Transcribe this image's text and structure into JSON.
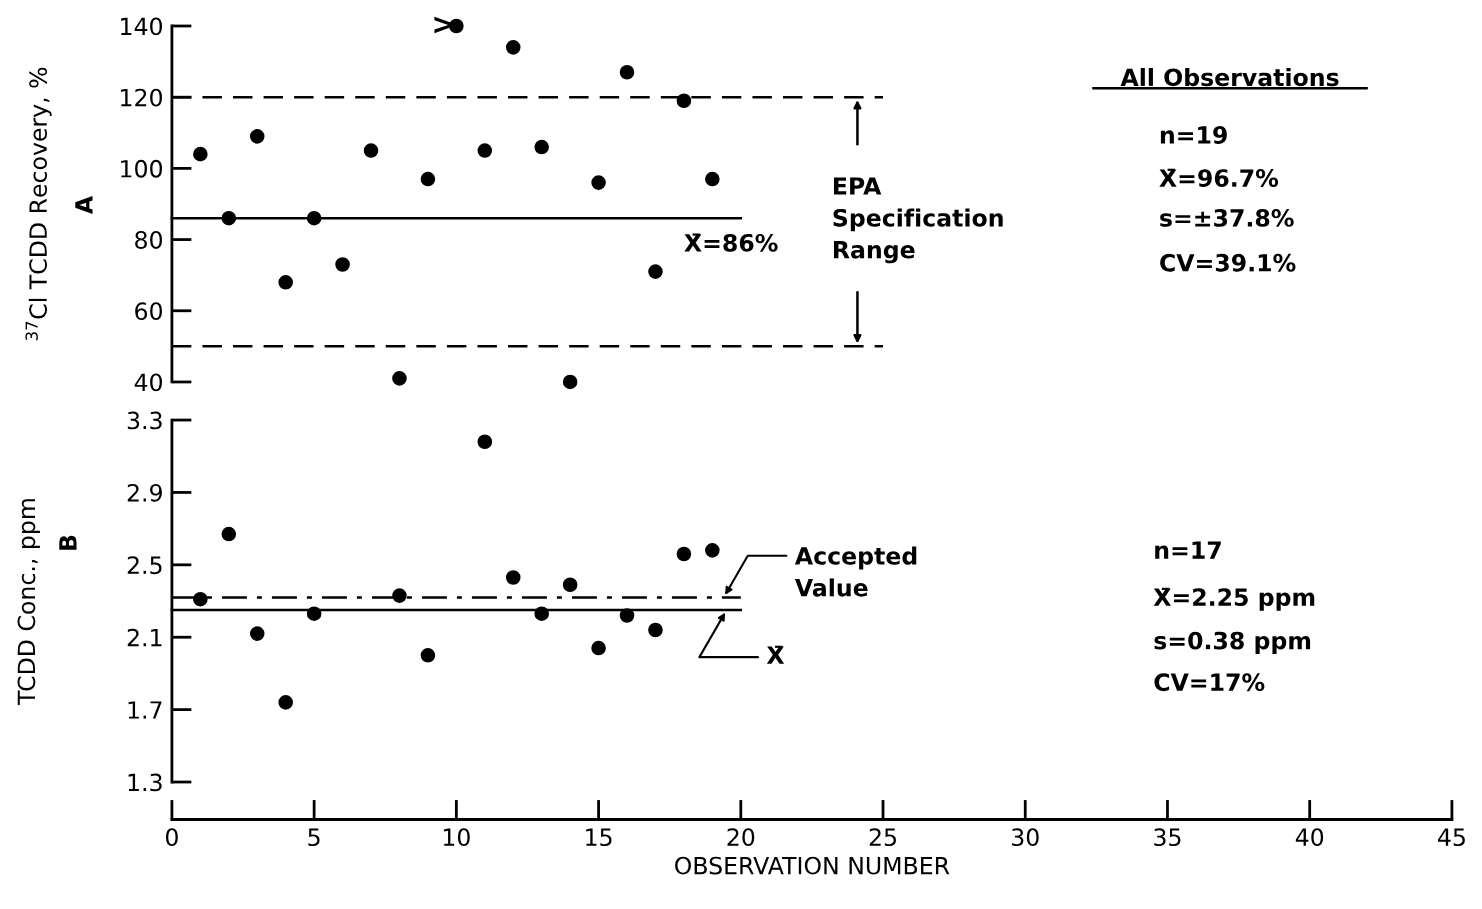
{
  "chart_data": [
    {
      "type": "scatter",
      "ylabel": "$^{37}$Cl TCDD Recovery, %",
      "xlim": [
        0,
        45
      ],
      "ylim": [
        40,
        140
      ],
      "yticks": [
        40,
        60,
        80,
        100,
        120,
        140
      ],
      "tick_labels": "y",
      "grid": false,
      "legend": false,
      "series": [
        {
          "color": "#000000",
          "marker": "circle",
          "x": [
            1,
            2,
            3,
            4,
            5,
            6,
            7,
            8,
            9,
            10,
            11,
            12,
            13,
            14,
            15,
            16,
            17,
            18,
            19
          ],
          "values": [
            104,
            86,
            109,
            68,
            86,
            73,
            105,
            41,
            97,
            140,
            105,
            134,
            106,
            40,
            96,
            127,
            71,
            119,
            97
          ]
        },
        {
          "type": "line",
          "color": "#000000",
          "line_style": "solid",
          "x": [
            0,
            20
          ],
          "values": [
            86,
            86
          ]
        },
        {
          "type": "line",
          "color": "#000000",
          "line_style": "dashed",
          "x": [
            0,
            25
          ],
          "values": [
            120,
            120
          ]
        },
        {
          "type": "line",
          "color": "#000000",
          "line_style": "dashed",
          "x": [
            0,
            25
          ],
          "values": [
            50,
            50
          ]
        }
      ],
      "annotations": [
        ">",
        "X̄=86%",
        "EPA\nSpecification\nRange",
        "All Observations",
        "n=19",
        "X̄=96.7%",
        "s=±37.8%",
        "CV=39.1%",
        "A"
      ]
    },
    {
      "type": "scatter",
      "ylabel": "TCDD Conc., ppm",
      "xlabel": "OBSERVATION NUMBER",
      "xlim": [
        0,
        45
      ],
      "xticks": [
        0,
        5,
        10,
        15,
        20,
        25,
        30,
        35,
        40,
        45
      ],
      "ylim": [
        1.3,
        3.3
      ],
      "yticks": [
        1.3,
        1.7,
        2.1,
        2.5,
        2.9,
        3.3
      ],
      "grid": false,
      "legend": false,
      "series": [
        {
          "color": "#000000",
          "marker": "circle",
          "x": [
            1,
            2,
            3,
            4,
            5,
            8,
            9,
            11,
            12,
            13,
            14,
            15,
            16,
            17,
            18,
            19
          ],
          "values": [
            2.31,
            2.67,
            2.12,
            1.74,
            2.23,
            2.33,
            2.0,
            3.18,
            2.43,
            2.23,
            2.39,
            2.04,
            2.22,
            2.14,
            2.56,
            2.58
          ]
        },
        {
          "type": "line",
          "color": "#000000",
          "line_style": "solid",
          "x": [
            0,
            20
          ],
          "values": [
            2.25,
            2.25
          ]
        },
        {
          "type": "line",
          "color": "#000000",
          "line_style": "dashdot",
          "x": [
            0,
            20
          ],
          "values": [
            2.32,
            2.32
          ]
        }
      ],
      "annotations": [
        "Accepted\nValue",
        "X̄",
        "n=17",
        "X̄=2.25 ppm",
        "s=0.38 ppm",
        "CV=17%",
        "B"
      ]
    }
  ]
}
